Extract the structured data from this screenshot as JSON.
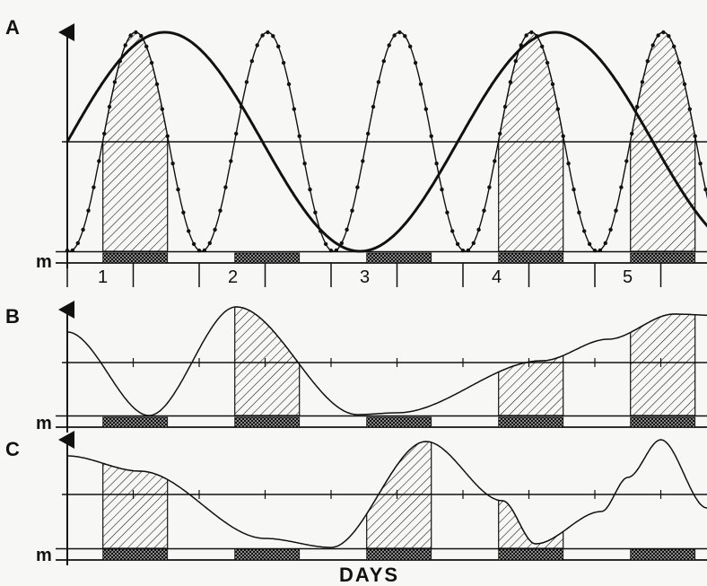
{
  "figure": {
    "panel_labels": [
      "A",
      "B",
      "C"
    ],
    "marker_label": "m",
    "day_labels": [
      "1",
      "2",
      "3",
      "4",
      "5"
    ],
    "x_axis_title": "DAYS",
    "colors": {
      "ink": "#111111",
      "background": "#f7f7f5"
    },
    "days_shown": 5,
    "night_bar_interval_days": [
      0.25,
      0.75
    ],
    "shaded_interval_days": [
      0.25,
      0.75
    ]
  },
  "chart_data": [
    {
      "panel": "A",
      "type": "line",
      "series": [
        {
          "style": "heavy smooth line",
          "period_days": 2.96
        },
        {
          "style": "dotted line",
          "period_days": 1.0
        }
      ],
      "shaded_days": [
        1,
        4,
        5
      ],
      "xlabel": "",
      "ylabel": ""
    },
    {
      "panel": "B",
      "type": "line",
      "shaded_days": [
        2,
        4,
        5
      ],
      "xlabel": "",
      "ylabel": ""
    },
    {
      "panel": "C",
      "type": "line",
      "shaded_days": [
        1,
        3,
        4
      ],
      "xlabel": "DAYS",
      "ylabel": ""
    }
  ]
}
